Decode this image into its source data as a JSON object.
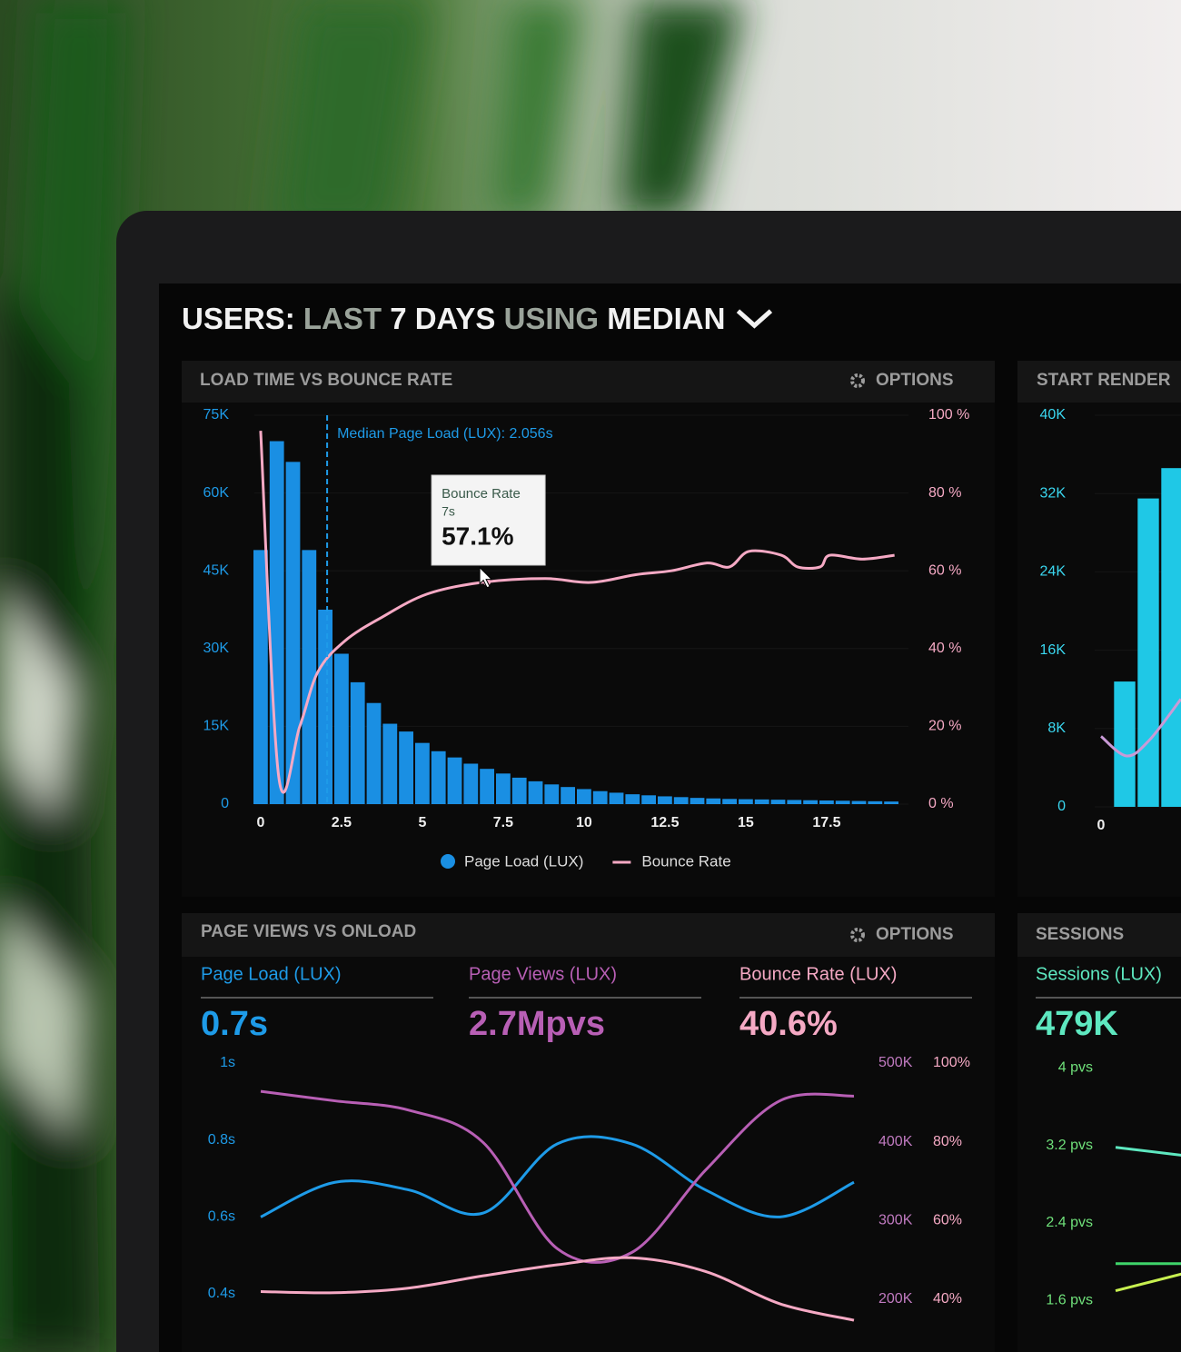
{
  "header": {
    "title_parts": [
      "USERS:",
      "LAST",
      "7 DAYS",
      "USING",
      "MEDIAN"
    ]
  },
  "chart_data": [
    {
      "type": "combo",
      "title": "LOAD TIME VS BOUNCE RATE",
      "options": "OPTIONS",
      "grid": true,
      "legend": "bottom",
      "bins": [
        -0.25,
        0.25,
        0.75,
        1.25,
        1.75,
        2.25,
        2.75,
        3.25,
        3.75,
        4.25,
        4.75,
        5.25,
        5.75,
        6.25,
        6.75,
        7.25,
        7.75,
        8.25,
        8.75,
        9.25,
        9.75,
        10.25,
        10.75,
        11.25,
        11.75,
        12.25,
        12.75,
        13.25,
        13.75,
        14.25,
        14.75,
        15.25,
        15.75,
        16.25,
        16.75,
        17.25,
        17.75,
        18.25,
        18.75,
        19.25,
        19.75
      ],
      "xlim": [
        -0.25,
        19.75
      ],
      "xticks": [
        0,
        2.5,
        5,
        7.5,
        10,
        12.5,
        15,
        17.5
      ],
      "ylim": [
        0,
        75000
      ],
      "yticks": [
        0,
        {
          "value": 15000,
          "label": "15K"
        },
        {
          "value": 30000,
          "label": "30K"
        },
        {
          "value": 45000,
          "label": "45K"
        },
        {
          "value": 60000,
          "label": "60K"
        },
        {
          "value": 75000,
          "label": "75K"
        }
      ],
      "y2lim": [
        0,
        100
      ],
      "y2ticks": [
        {
          "value": 0,
          "label": "0 %"
        },
        {
          "value": 20,
          "label": "20 %"
        },
        {
          "value": 40,
          "label": "40 %"
        },
        {
          "value": 60,
          "label": "60 %"
        },
        {
          "value": 80,
          "label": "80 %"
        },
        {
          "value": 100,
          "label": "100 %"
        }
      ],
      "series": [
        {
          "name": "Page Load (LUX)",
          "type": "histogram",
          "color": "#1a8fe3",
          "values": [
            49000,
            70000,
            66000,
            49000,
            37500,
            29000,
            23500,
            19500,
            15500,
            14000,
            11800,
            10200,
            9000,
            7800,
            6800,
            5900,
            5100,
            4400,
            3800,
            3300,
            2900,
            2500,
            2200,
            1900,
            1700,
            1500,
            1350,
            1200,
            1100,
            1000,
            950,
            900,
            850,
            800,
            750,
            700,
            650,
            600,
            550,
            500
          ]
        },
        {
          "name": "Bounce Rate",
          "type": "line",
          "axis": "y2",
          "color": "#f5a9c4",
          "x": [
            0,
            0.56,
            1.21,
            1.77,
            2.61,
            3.74,
            5.14,
            6.83,
            8.8,
            10.2,
            11.6,
            12.7,
            13.8,
            14.5,
            15.1,
            16.1,
            16.6,
            17.3,
            17.6,
            18.6,
            19.6
          ],
          "values": [
            96,
            7,
            20,
            34,
            42,
            48,
            54,
            57,
            58,
            57,
            59,
            60,
            62,
            61,
            65,
            64,
            61,
            61,
            64,
            63,
            64
          ]
        }
      ],
      "annotation": {
        "x": 2.056,
        "label": "Median Page Load (LUX): 2.056s"
      },
      "tooltip": {
        "title": "Bounce Rate",
        "x": 7,
        "x_label": "7s",
        "value": 57.1,
        "value_label": "57.1%"
      }
    },
    {
      "type": "combo",
      "title": "START RENDER",
      "grid": true,
      "xlim": [
        -0.5,
        5
      ],
      "xticks": [
        0
      ],
      "ylim": [
        0,
        40000
      ],
      "yticks": [
        0,
        {
          "value": 8000,
          "label": "8K"
        },
        {
          "value": 16000,
          "label": "16K"
        },
        {
          "value": 24000,
          "label": "24K"
        },
        {
          "value": 32000,
          "label": "32K"
        },
        {
          "value": 40000,
          "label": "40K"
        }
      ],
      "series": [
        {
          "type": "bar",
          "color": "#1fc8e6",
          "x": [
            1,
            2,
            3
          ],
          "values": [
            12800,
            31500,
            34600
          ]
        },
        {
          "type": "line",
          "color": "#c99ad6",
          "x": [
            0,
            1.08,
            2.04,
            3.38
          ],
          "values": [
            7200,
            5200,
            6800,
            11000
          ]
        }
      ]
    },
    {
      "type": "line",
      "title": "PAGE VIEWS VS ONLOAD",
      "options": "OPTIONS",
      "categories": [
        null,
        null,
        null,
        null,
        null,
        null,
        null,
        null,
        null
      ],
      "ylim": [
        0.315,
        1
      ],
      "yticks": [
        {
          "value": 0.4,
          "label": "0.4s"
        },
        {
          "value": 0.6,
          "label": "0.6s"
        },
        {
          "value": 0.8,
          "label": "0.8s"
        },
        {
          "value": 1,
          "label": "1s"
        }
      ],
      "y2lim": [
        165000,
        500000
      ],
      "y2ticks": [
        {
          "value": 200000,
          "label": "200K"
        },
        {
          "value": 300000,
          "label": "300K"
        },
        {
          "value": 400000,
          "label": "400K"
        },
        {
          "value": 500000,
          "label": "500K"
        }
      ],
      "y3lim": [
        33,
        100
      ],
      "y3ticks": [
        {
          "value": 40,
          "label": "40%"
        },
        {
          "value": 60,
          "label": "60%"
        },
        {
          "value": 80,
          "label": "80%"
        },
        {
          "value": 100,
          "label": "100%"
        }
      ],
      "series": [
        {
          "name": "Page Load (LUX)",
          "summary": "0.7s",
          "axis": "y",
          "color": "#1e9be8",
          "values": [
            0.6,
            0.69,
            0.67,
            0.61,
            0.79,
            0.79,
            0.67,
            0.6,
            0.69
          ]
        },
        {
          "name": "Page Views (LUX)",
          "summary": "2.7Mpvs",
          "axis": "y2",
          "color": "#b85fb5",
          "values": [
            464000,
            452000,
            440000,
            399000,
            264000,
            259000,
            364000,
            452000,
            458000
          ]
        },
        {
          "name": "Bounce Rate (LUX)",
          "summary": "40.6%",
          "axis": "y3",
          "color": "#f5a9c4",
          "values": [
            41.9,
            41.6,
            42.8,
            45.9,
            48.7,
            50.5,
            47,
            38.8,
            34.6
          ]
        }
      ]
    },
    {
      "type": "line",
      "title": "SESSIONS",
      "categories": [
        null,
        null
      ],
      "ylim": [
        1.33,
        4.05
      ],
      "yticks": [
        {
          "value": 1.6,
          "label": "1.6 pvs"
        },
        {
          "value": 2.4,
          "label": "2.4 pvs"
        },
        {
          "value": 3.2,
          "label": "3.2 pvs"
        },
        {
          "value": 4,
          "label": "4 pvs"
        }
      ],
      "series": [
        {
          "name": "Sessions (LUX)",
          "summary": "479K",
          "axis": "y",
          "color": "#5ee8c0",
          "values": [
            3.18,
            3.09
          ]
        },
        {
          "axis": "y",
          "color": "#3fd46a",
          "values": [
            1.98,
            1.98
          ]
        },
        {
          "axis": "y",
          "color": "#c8f050",
          "values": [
            1.7,
            1.89
          ]
        }
      ]
    }
  ]
}
